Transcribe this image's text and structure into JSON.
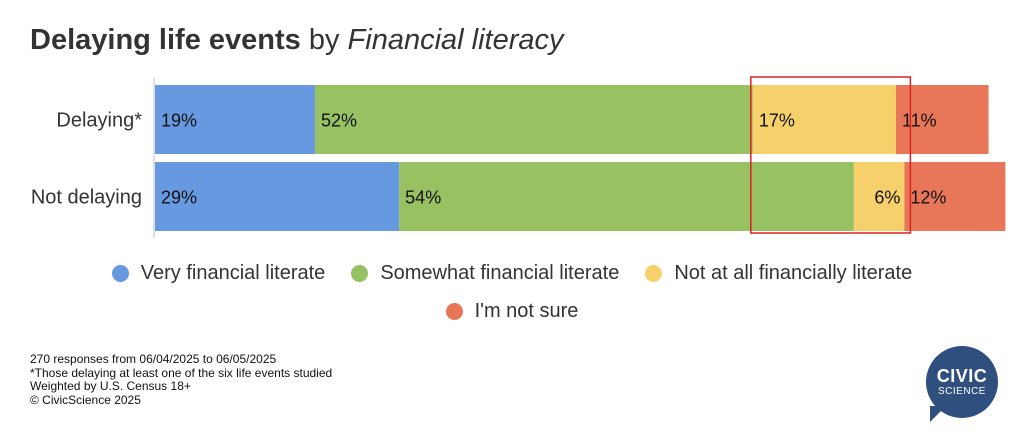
{
  "title": {
    "part1": "Delaying life events",
    "part2": " by ",
    "part3": "Financial literacy"
  },
  "chart_data": {
    "type": "bar",
    "orientation": "horizontal",
    "stacked": "100%",
    "categories": [
      "Delaying*",
      "Not delaying"
    ],
    "series": [
      {
        "name": "Very financial literate",
        "color": "#6699e0",
        "values": [
          19,
          29
        ]
      },
      {
        "name": "Somewhat financial literate",
        "color": "#98c162",
        "values": [
          52,
          54
        ]
      },
      {
        "name": "Not at all financially literate",
        "color": "#f6d06a",
        "values": [
          17,
          6
        ]
      },
      {
        "name": "I'm not sure",
        "color": "#e8775a",
        "values": [
          11,
          12
        ]
      }
    ],
    "value_suffix": "%",
    "xlim": [
      0,
      100
    ],
    "legend_position": "bottom",
    "highlight": {
      "series": "Not at all financially literate",
      "color": "#e02020"
    }
  },
  "notes": [
    "270 responses from 06/04/2025 to 06/05/2025",
    "*Those delaying at least one of the six life events studied",
    "Weighted by U.S. Census 18+",
    "© CivicScience 2025"
  ],
  "logo": {
    "line1": "CIVIC",
    "line2": "SCIENCE"
  }
}
